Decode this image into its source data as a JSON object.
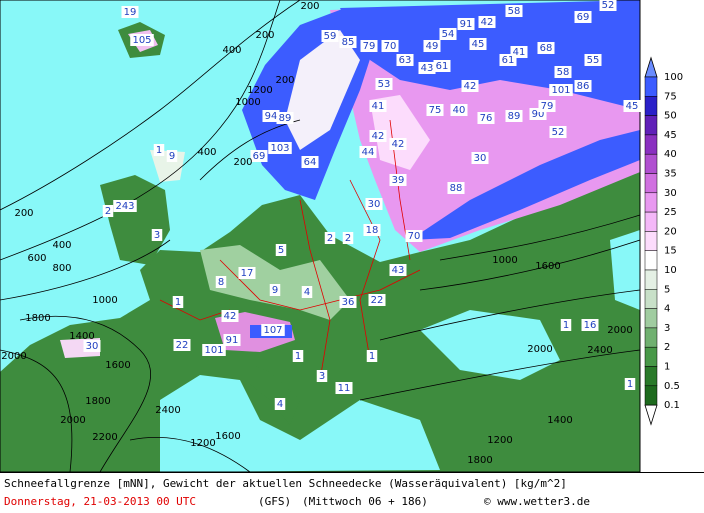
{
  "map": {
    "boxed_labels": [
      "105",
      "19",
      "59",
      "85",
      "79",
      "70",
      "49",
      "54",
      "91",
      "42",
      "58",
      "69",
      "52",
      "45",
      "41",
      "68",
      "61",
      "63",
      "43",
      "61",
      "55",
      "58",
      "53",
      "42",
      "101",
      "86",
      "45",
      "41",
      "75",
      "40",
      "76",
      "89",
      "90",
      "79",
      "52",
      "94",
      "89",
      "69",
      "103",
      "64",
      "42",
      "42",
      "44",
      "30",
      "39",
      "88",
      "70",
      "43",
      "30",
      "18",
      "2",
      "2",
      "5",
      "17",
      "9",
      "36",
      "22",
      "42",
      "107",
      "91",
      "101",
      "30",
      "22",
      "1",
      "1",
      "11",
      "4",
      "3",
      "1",
      "1",
      "16",
      "1",
      "3",
      "243",
      "2",
      "1",
      "9",
      "8",
      "4"
    ],
    "contour_labels": [
      "200",
      "200",
      "200",
      "400",
      "400",
      "200",
      "200",
      "400",
      "600",
      "800",
      "1000",
      "1400",
      "1800",
      "2000",
      "1600",
      "1800",
      "2000",
      "2200",
      "2400",
      "1200",
      "1600",
      "1000",
      "1200",
      "1600",
      "2000",
      "2400",
      "1400",
      "1000",
      "1200",
      "1800",
      "2000"
    ]
  },
  "legend": {
    "levels": [
      {
        "label": "100",
        "color": "#6a8cff"
      },
      {
        "label": "75",
        "color": "#3c5cff"
      },
      {
        "label": "50",
        "color": "#2a20c8"
      },
      {
        "label": "45",
        "color": "#6020b8"
      },
      {
        "label": "40",
        "color": "#8a30c0"
      },
      {
        "label": "35",
        "color": "#b050d0"
      },
      {
        "label": "30",
        "color": "#d070e0"
      },
      {
        "label": "25",
        "color": "#e898f0"
      },
      {
        "label": "20",
        "color": "#f4b8f8"
      },
      {
        "label": "15",
        "color": "#fcdcfc"
      },
      {
        "label": "10",
        "color": "#ffffff"
      },
      {
        "label": "5",
        "color": "#e4f0e4"
      },
      {
        "label": "4",
        "color": "#c8e0c8"
      },
      {
        "label": "3",
        "color": "#a0cca0"
      },
      {
        "label": "2",
        "color": "#70b070"
      },
      {
        "label": "1",
        "color": "#489848"
      },
      {
        "label": "0.5",
        "color": "#2a7a2a"
      },
      {
        "label": "0.1",
        "color": "#1e6a1e"
      }
    ],
    "below_color": "#ffffff"
  },
  "footer": {
    "line1": "Schneefallgrenze [mNN], Gewicht der aktuellen Schneedecke (Wasseräquivalent) [kg/m^2]",
    "date": "Donnerstag, 21-03-2013  00 UTC",
    "model": "(GFS)",
    "run": "(Mittwoch 06 + 186)",
    "credit": "© www.wetter3.de"
  }
}
